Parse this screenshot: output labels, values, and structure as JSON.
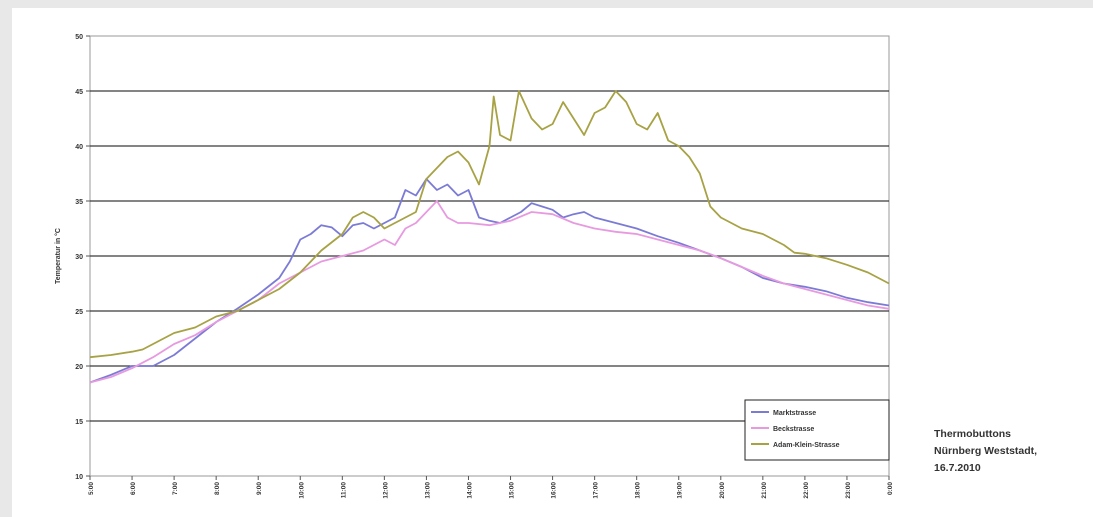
{
  "chart_data": {
    "type": "line",
    "title": "",
    "xlabel": "",
    "ylabel": "Temperatur in °C",
    "ylim": [
      10,
      50
    ],
    "yticks": [
      "10",
      "15",
      "20",
      "25",
      "30",
      "35",
      "40",
      "45",
      "50"
    ],
    "xticks": [
      "5:00",
      "6:00",
      "7:00",
      "8:00",
      "9:00",
      "10:00",
      "11:00",
      "12:00",
      "13:00",
      "14:00",
      "15:00",
      "16:00",
      "17:00",
      "18:00",
      "19:00",
      "20:00",
      "21:00",
      "22:00",
      "23:00",
      "0:00"
    ],
    "grid": "horizontal",
    "legend": "bottom-right",
    "series": [
      {
        "name": "Marktstrasse",
        "color": "#7b7bd6",
        "points": [
          [
            5.0,
            18.5
          ],
          [
            5.5,
            19.2
          ],
          [
            6.0,
            20.0
          ],
          [
            6.5,
            20.0
          ],
          [
            7.0,
            21.0
          ],
          [
            7.5,
            22.5
          ],
          [
            8.0,
            24.0
          ],
          [
            8.5,
            25.2
          ],
          [
            9.0,
            26.5
          ],
          [
            9.5,
            28.0
          ],
          [
            9.75,
            29.5
          ],
          [
            10.0,
            31.5
          ],
          [
            10.25,
            32.0
          ],
          [
            10.5,
            32.8
          ],
          [
            10.75,
            32.6
          ],
          [
            11.0,
            31.8
          ],
          [
            11.25,
            32.8
          ],
          [
            11.5,
            33.0
          ],
          [
            11.75,
            32.5
          ],
          [
            12.0,
            33.0
          ],
          [
            12.25,
            33.5
          ],
          [
            12.5,
            36.0
          ],
          [
            12.75,
            35.5
          ],
          [
            13.0,
            37.0
          ],
          [
            13.25,
            36.0
          ],
          [
            13.5,
            36.5
          ],
          [
            13.75,
            35.5
          ],
          [
            14.0,
            36.0
          ],
          [
            14.25,
            33.5
          ],
          [
            14.5,
            33.2
          ],
          [
            14.75,
            33.0
          ],
          [
            15.0,
            33.5
          ],
          [
            15.25,
            34.0
          ],
          [
            15.5,
            34.8
          ],
          [
            15.75,
            34.5
          ],
          [
            16.0,
            34.2
          ],
          [
            16.25,
            33.5
          ],
          [
            16.5,
            33.8
          ],
          [
            16.75,
            34.0
          ],
          [
            17.0,
            33.5
          ],
          [
            17.5,
            33.0
          ],
          [
            18.0,
            32.5
          ],
          [
            18.5,
            31.8
          ],
          [
            19.0,
            31.2
          ],
          [
            19.5,
            30.5
          ],
          [
            20.0,
            29.8
          ],
          [
            20.5,
            29.0
          ],
          [
            21.0,
            28.0
          ],
          [
            21.5,
            27.5
          ],
          [
            22.0,
            27.2
          ],
          [
            22.5,
            26.8
          ],
          [
            23.0,
            26.2
          ],
          [
            23.5,
            25.8
          ],
          [
            24.0,
            25.5
          ]
        ]
      },
      {
        "name": "Beckstrasse",
        "color": "#e79ae0",
        "points": [
          [
            5.0,
            18.5
          ],
          [
            5.5,
            19.0
          ],
          [
            6.0,
            19.8
          ],
          [
            6.5,
            20.8
          ],
          [
            7.0,
            22.0
          ],
          [
            7.5,
            22.8
          ],
          [
            8.0,
            24.0
          ],
          [
            8.5,
            25.0
          ],
          [
            9.0,
            26.0
          ],
          [
            9.5,
            27.5
          ],
          [
            10.0,
            28.5
          ],
          [
            10.5,
            29.5
          ],
          [
            11.0,
            30.0
          ],
          [
            11.5,
            30.5
          ],
          [
            12.0,
            31.5
          ],
          [
            12.25,
            31.0
          ],
          [
            12.5,
            32.5
          ],
          [
            12.75,
            33.0
          ],
          [
            13.0,
            34.0
          ],
          [
            13.25,
            35.0
          ],
          [
            13.5,
            33.5
          ],
          [
            13.75,
            33.0
          ],
          [
            14.0,
            33.0
          ],
          [
            14.5,
            32.8
          ],
          [
            15.0,
            33.2
          ],
          [
            15.5,
            34.0
          ],
          [
            16.0,
            33.8
          ],
          [
            16.5,
            33.0
          ],
          [
            17.0,
            32.5
          ],
          [
            17.5,
            32.2
          ],
          [
            18.0,
            32.0
          ],
          [
            18.5,
            31.5
          ],
          [
            19.0,
            31.0
          ],
          [
            19.5,
            30.5
          ],
          [
            20.0,
            29.8
          ],
          [
            20.5,
            29.0
          ],
          [
            21.0,
            28.2
          ],
          [
            21.5,
            27.5
          ],
          [
            22.0,
            27.0
          ],
          [
            22.5,
            26.5
          ],
          [
            23.0,
            26.0
          ],
          [
            23.5,
            25.5
          ],
          [
            24.0,
            25.2
          ]
        ]
      },
      {
        "name": "Adam-Klein-Strasse",
        "color": "#a7a244",
        "points": [
          [
            5.0,
            20.8
          ],
          [
            5.5,
            21.0
          ],
          [
            6.0,
            21.3
          ],
          [
            6.25,
            21.5
          ],
          [
            6.5,
            22.0
          ],
          [
            7.0,
            23.0
          ],
          [
            7.5,
            23.5
          ],
          [
            8.0,
            24.5
          ],
          [
            8.5,
            25.0
          ],
          [
            9.0,
            26.0
          ],
          [
            9.5,
            27.0
          ],
          [
            10.0,
            28.5
          ],
          [
            10.5,
            30.5
          ],
          [
            11.0,
            32.0
          ],
          [
            11.25,
            33.5
          ],
          [
            11.5,
            34.0
          ],
          [
            11.75,
            33.5
          ],
          [
            12.0,
            32.5
          ],
          [
            12.25,
            33.0
          ],
          [
            12.5,
            33.5
          ],
          [
            12.75,
            34.0
          ],
          [
            13.0,
            37.0
          ],
          [
            13.25,
            38.0
          ],
          [
            13.5,
            39.0
          ],
          [
            13.75,
            39.5
          ],
          [
            14.0,
            38.5
          ],
          [
            14.25,
            36.5
          ],
          [
            14.5,
            40.0
          ],
          [
            14.6,
            44.5
          ],
          [
            14.75,
            41.0
          ],
          [
            15.0,
            40.5
          ],
          [
            15.2,
            45.0
          ],
          [
            15.5,
            42.5
          ],
          [
            15.75,
            41.5
          ],
          [
            16.0,
            42.0
          ],
          [
            16.25,
            44.0
          ],
          [
            16.5,
            42.5
          ],
          [
            16.75,
            41.0
          ],
          [
            17.0,
            43.0
          ],
          [
            17.25,
            43.5
          ],
          [
            17.5,
            45.0
          ],
          [
            17.75,
            44.0
          ],
          [
            18.0,
            42.0
          ],
          [
            18.25,
            41.5
          ],
          [
            18.5,
            43.0
          ],
          [
            18.75,
            40.5
          ],
          [
            19.0,
            40.0
          ],
          [
            19.25,
            39.0
          ],
          [
            19.5,
            37.5
          ],
          [
            19.75,
            34.5
          ],
          [
            20.0,
            33.5
          ],
          [
            20.5,
            32.5
          ],
          [
            21.0,
            32.0
          ],
          [
            21.5,
            31.0
          ],
          [
            21.75,
            30.3
          ],
          [
            22.0,
            30.2
          ],
          [
            22.5,
            29.8
          ],
          [
            23.0,
            29.2
          ],
          [
            23.5,
            28.5
          ],
          [
            24.0,
            27.5
          ]
        ]
      }
    ]
  },
  "caption": {
    "line1": "Thermobuttons",
    "line2": "Nürnberg Weststadt,",
    "line3": "16.7.2010"
  }
}
